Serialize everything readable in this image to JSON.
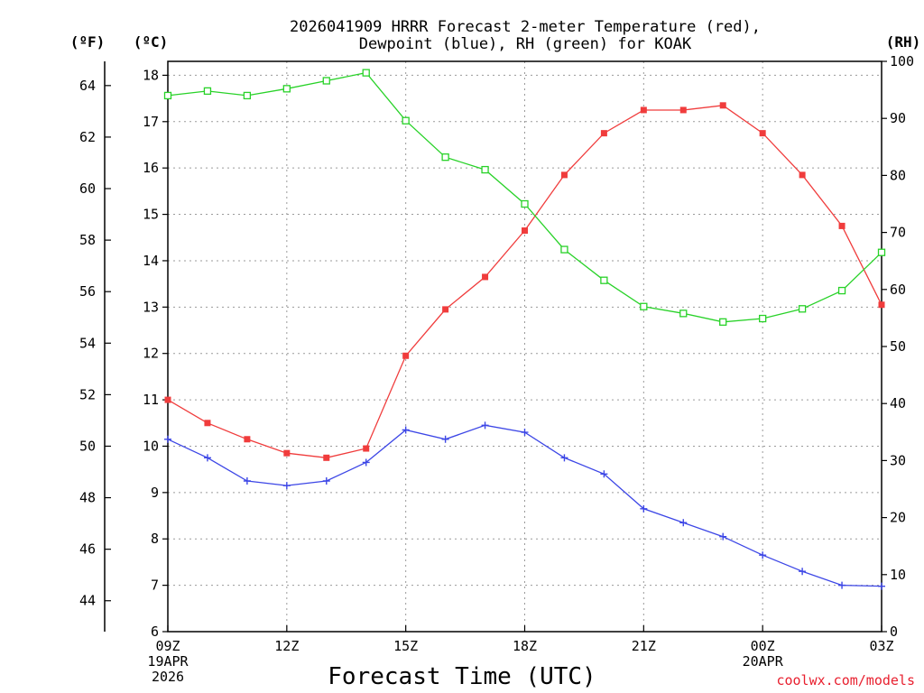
{
  "chart_data": {
    "type": "line",
    "title_lines": [
      "2026041909 HRRR Forecast 2-meter Temperature (red),",
      "Dewpoint (blue), RH (green) for KOAK"
    ],
    "xlabel": "Forecast Time (UTC)",
    "credit": "coolwx.com/models",
    "axis_units": {
      "fahrenheit": "(ºF)",
      "celsius": "(ºC)",
      "rh": "(RH)"
    },
    "x_hours": [
      0,
      1,
      2,
      3,
      4,
      5,
      6,
      7,
      8,
      9,
      10,
      11,
      12,
      13,
      14,
      15,
      16,
      17,
      18
    ],
    "xlim": [
      0,
      18
    ],
    "x_ticks": [
      {
        "hour": 0,
        "lines": [
          "09Z",
          "19APR",
          "2026"
        ]
      },
      {
        "hour": 3,
        "lines": [
          "12Z"
        ]
      },
      {
        "hour": 6,
        "lines": [
          "15Z"
        ]
      },
      {
        "hour": 9,
        "lines": [
          "18Z"
        ]
      },
      {
        "hour": 12,
        "lines": [
          "21Z"
        ]
      },
      {
        "hour": 15,
        "lines": [
          "00Z",
          "20APR"
        ]
      },
      {
        "hour": 18,
        "lines": [
          "03Z"
        ]
      }
    ],
    "celsius_axis": {
      "ylim": [
        6,
        18.3
      ],
      "ticks": [
        6,
        7,
        8,
        9,
        10,
        11,
        12,
        13,
        14,
        15,
        16,
        17,
        18
      ]
    },
    "fahrenheit_axis": {
      "ylim": [
        42.8,
        64.94
      ],
      "ticks": [
        44,
        46,
        48,
        50,
        52,
        54,
        56,
        58,
        60,
        62,
        64
      ]
    },
    "rh_axis": {
      "ylim": [
        0,
        100
      ],
      "ticks": [
        0,
        10,
        20,
        30,
        40,
        50,
        60,
        70,
        80,
        90,
        100
      ]
    },
    "series": [
      {
        "name": "2-meter Temperature",
        "axis": "celsius",
        "color": "#f03c3c",
        "marker": "filled-square",
        "values": [
          11.0,
          10.5,
          10.15,
          9.85,
          9.75,
          9.95,
          11.95,
          12.95,
          13.65,
          14.65,
          15.85,
          16.75,
          17.25,
          17.25,
          17.35,
          16.75,
          15.85,
          14.75,
          13.05
        ]
      },
      {
        "name": "Dewpoint",
        "axis": "celsius",
        "color": "#3c46e6",
        "marker": "plus",
        "values": [
          10.15,
          9.75,
          9.25,
          9.15,
          9.25,
          9.65,
          10.35,
          10.15,
          10.45,
          10.3,
          9.75,
          9.4,
          8.65,
          8.35,
          8.05,
          7.65,
          7.3,
          7.0,
          6.98
        ]
      },
      {
        "name": "RH",
        "axis": "rh",
        "color": "#28d228",
        "marker": "open-square",
        "values": [
          94,
          94.8,
          94,
          95.2,
          96.6,
          98,
          89.6,
          83.2,
          81,
          75,
          67,
          61.6,
          57,
          55.8,
          54.3,
          54.9,
          56.6,
          59.8,
          66.5
        ]
      }
    ],
    "grid": true
  }
}
